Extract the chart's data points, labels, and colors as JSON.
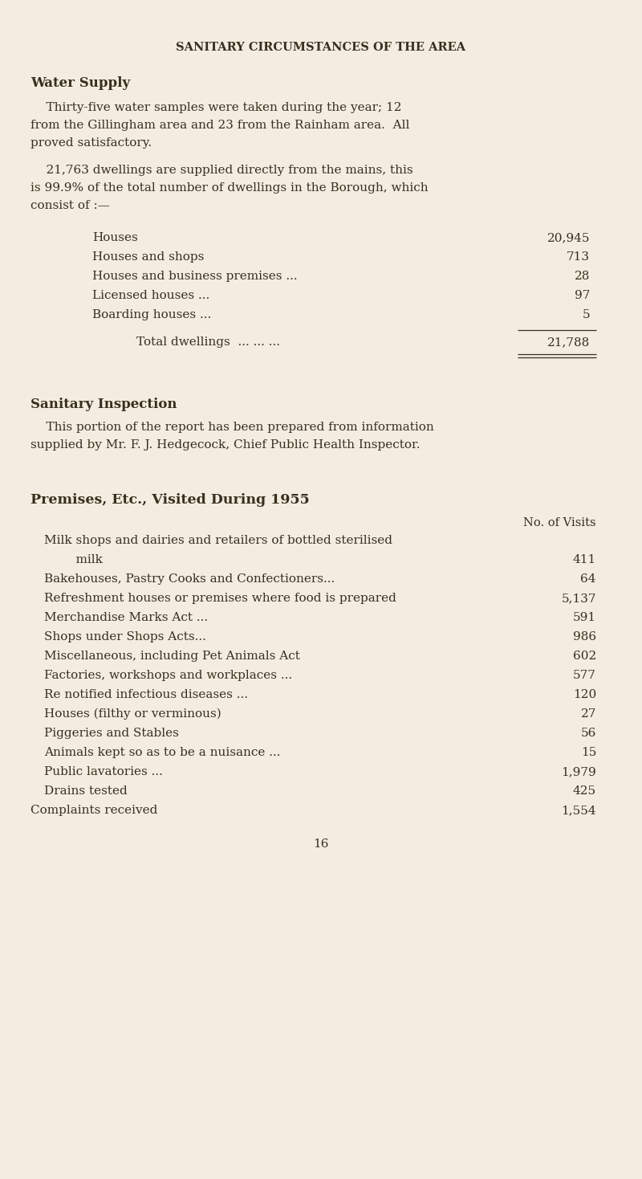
{
  "bg_color": "#f2ede0",
  "text_color": "#3a2e1e",
  "page_title": "SANITARY CIRCUMSTANCES OF THE AREA",
  "section1_heading": "Water Supply",
  "para1_lines": [
    "    Thirty-five water samples were taken during the year; 12",
    "from the Gillingham area and 23 from the Rainham area.  All",
    "proved satisfactory."
  ],
  "para2_lines": [
    "    21,763 dwellings are supplied directly from the mains, this",
    "is 99.9% of the total number of dwellings in the Borough, which",
    "consist of :—"
  ],
  "dwelling_labels": [
    "Houses",
    "Houses and shops",
    "Houses and business premises ...",
    "Licensed houses ...",
    "Boarding houses ..."
  ],
  "dwelling_dots": [
    "... ... ... ... ...",
    "... ... ...",
    "...",
    "... ... ... ...",
    "... ... ..."
  ],
  "dwelling_values": [
    "20,945",
    "713",
    "28",
    "97",
    "5"
  ],
  "total_label": "Total dwellings",
  "total_dots": "... ... ...",
  "total_value": "21,788",
  "section2_heading": "Sanitary Inspection",
  "para3_lines": [
    "    This portion of the report has been prepared from information",
    "supplied by Mr. F. J. Hedgecock, Chief Public Health Inspector."
  ],
  "section3_heading": "Premises, Etc., Visited During 1955",
  "col_header": "No. of Visits",
  "premises_labels": [
    "Milk shops and dairies and retailers of bottled sterilised",
    "    milk",
    "Bakehouses, Pastry Cooks and Confectioners...",
    "Refreshment houses or premises where food is prepared",
    "Merchandise Marks Act ...",
    "Shops under Shops Acts...",
    "Miscellaneous, including Pet Animals Act",
    "Factories, workshops and workplaces ...",
    "Re notified infectious diseases ...",
    "Houses (filthy or verminous)",
    "Piggeries and Stables",
    "Animals kept so as to be a nuisance ...",
    "Public lavatories ...",
    "Drains tested",
    "Complaints received"
  ],
  "premises_values": [
    "",
    "411",
    "64",
    "5,137",
    "591",
    "986",
    "602",
    "577",
    "120",
    "27",
    "56",
    "15",
    "1,979",
    "425",
    "1,554"
  ],
  "page_number": "16"
}
